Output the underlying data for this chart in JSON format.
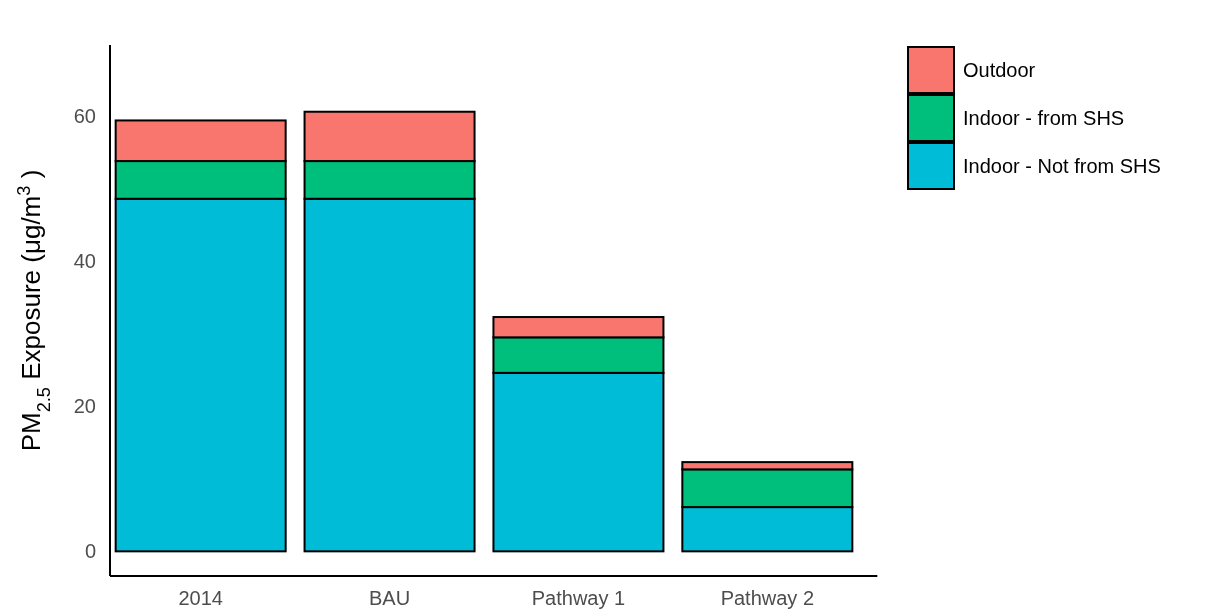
{
  "chart_data": {
    "type": "bar",
    "stacked": true,
    "ylabel": "PM$_{2.5}$ Exposure (μg/m$^{3}$ )",
    "categories": [
      "2014",
      "BAU",
      "Pathway 1",
      "Pathway 2"
    ],
    "series": [
      {
        "name": "Indoor - Not from SHS",
        "color": "#00bcd6",
        "values": [
          48.6,
          48.6,
          24.6,
          6.1
        ]
      },
      {
        "name": "Indoor - from SHS",
        "color": "#00bf7d",
        "values": [
          5.2,
          5.2,
          4.9,
          5.2
        ]
      },
      {
        "name": "Outdoor",
        "color": "#f8766d",
        "values": [
          5.6,
          6.8,
          2.8,
          1.0
        ]
      }
    ],
    "ylim": [
      -3.4,
      69.8
    ],
    "yticks": [
      0,
      20,
      40,
      60
    ],
    "grid": false,
    "legend": "top right"
  }
}
